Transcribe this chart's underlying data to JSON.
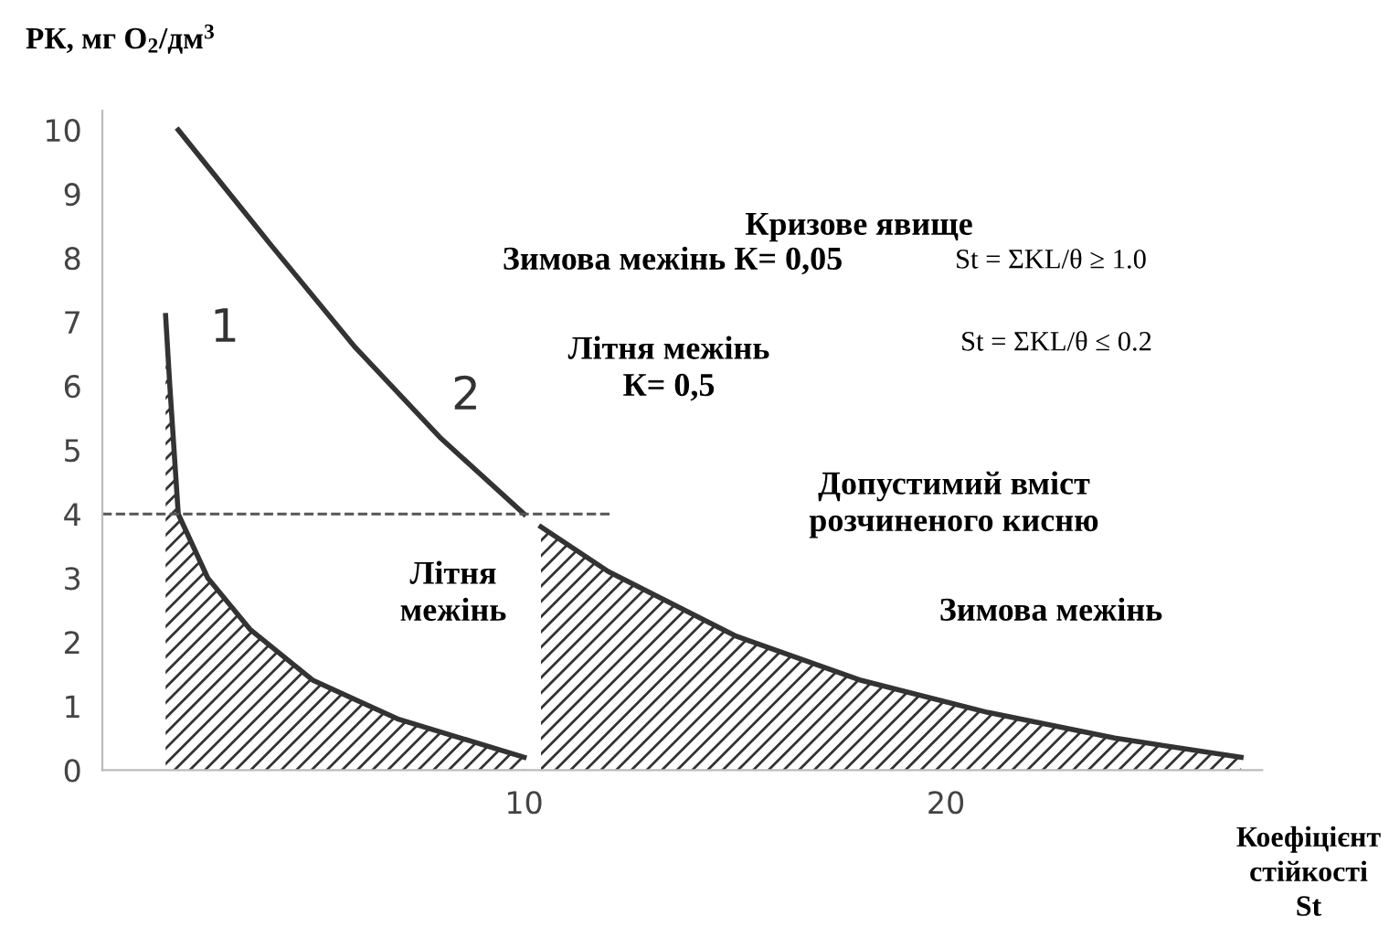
{
  "chart_data": {
    "type": "line",
    "ylabel": "РК, мг O$_{2}$/дм$^{3}$",
    "xlabel": "Коефіцієнт\nстійкості\nSt",
    "xlim": [
      0,
      27.5
    ],
    "ylim": [
      0,
      10.3
    ],
    "xticks": [
      10,
      20
    ],
    "yticks": [
      0,
      1,
      2,
      3,
      4,
      5,
      6,
      7,
      8,
      9,
      10
    ],
    "grid": false,
    "legend": false,
    "series": [
      {
        "type": "area",
        "color": "#333333",
        "x": [
          1.5,
          1.6,
          1.7,
          1.8,
          2.5,
          3.5,
          5,
          7,
          10
        ],
        "values": [
          7.1,
          6,
          5,
          4,
          3,
          2.2,
          1.4,
          0.8,
          0.2
        ]
      },
      {
        "color": "#333333",
        "x": [
          1.8,
          4,
          6,
          8,
          10
        ],
        "values": [
          10,
          8.2,
          6.6,
          5.2,
          4
        ]
      },
      {
        "type": "area",
        "color": "#333333",
        "x": [
          10.4,
          12,
          15,
          18,
          21,
          24,
          27
        ],
        "values": [
          3.8,
          3.1,
          2.1,
          1.4,
          0.9,
          0.5,
          0.2
        ]
      }
    ],
    "ref_lines": [
      {
        "axis": "y",
        "value": 4,
        "line_style": "dashed",
        "color": "#555555"
      }
    ],
    "annotations": [
      "Кризове явище",
      "Зимова межінь К= 0,05",
      "St = ΣKL/θ ≥ 1.0",
      "Літня межінь\nК= 0,5",
      "St = ΣKL/θ ≤ 0.2",
      "1",
      "2",
      "Допустимий вміст\nрозчиненого кисню",
      "Літня\nмежінь",
      "Зимова межінь"
    ]
  }
}
